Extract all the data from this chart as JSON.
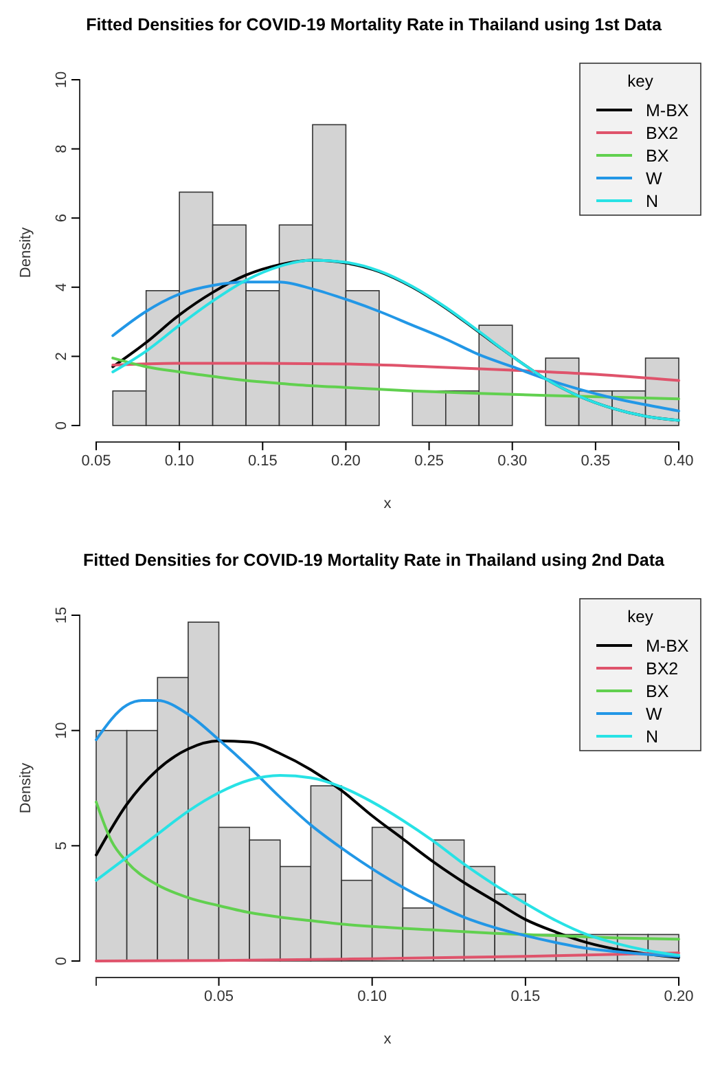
{
  "chart_data": [
    {
      "type": "histogram",
      "title": "Fitted Densities for COVID-19 Mortality Rate  in Thailand using 1st Data",
      "xlabel": "x",
      "ylabel": "Density",
      "legend_title": "key",
      "legend": "top right",
      "grid": false,
      "color": "#d3d3d3",
      "bins": [
        0.06,
        0.08,
        0.1,
        0.12,
        0.14,
        0.16,
        0.18,
        0.2,
        0.22,
        0.24,
        0.26,
        0.28,
        0.3,
        0.32,
        0.34,
        0.36,
        0.38,
        0.4
      ],
      "values": [
        1,
        3.9,
        6.75,
        5.8,
        3.9,
        5.8,
        8.7,
        3.9,
        0,
        1,
        1,
        2.9,
        0,
        1.95,
        1,
        1,
        1.95
      ],
      "xlim": [
        0.05,
        0.4
      ],
      "xticks": [
        {
          "value": 0.05,
          "label": "0.05"
        },
        {
          "value": 0.1,
          "label": "0.10"
        },
        {
          "value": 0.15,
          "label": "0.15"
        },
        {
          "value": 0.2,
          "label": "0.20"
        },
        {
          "value": 0.25,
          "label": "0.25"
        },
        {
          "value": 0.3,
          "label": "0.30"
        },
        {
          "value": 0.35,
          "label": "0.35"
        },
        {
          "value": 0.4,
          "label": "0.40"
        }
      ],
      "ylim": [
        0,
        10
      ],
      "yticks": [
        0,
        2,
        4,
        6,
        8,
        10
      ],
      "series": [
        {
          "type": "line",
          "name": "M-BX",
          "color": "#000000",
          "x": [
            0.06,
            0.08,
            0.1,
            0.12,
            0.14,
            0.16,
            0.18,
            0.2,
            0.22,
            0.24,
            0.26,
            0.28,
            0.3,
            0.32,
            0.34,
            0.36,
            0.38,
            0.4
          ],
          "values": [
            1.7,
            2.4,
            3.2,
            3.85,
            4.35,
            4.65,
            4.78,
            4.7,
            4.45,
            4.0,
            3.4,
            2.7,
            2.0,
            1.35,
            0.85,
            0.5,
            0.27,
            0.15
          ]
        },
        {
          "type": "line",
          "name": "BX2",
          "color": "#df536b",
          "x": [
            0.06,
            0.1,
            0.15,
            0.2,
            0.25,
            0.3,
            0.35,
            0.4
          ],
          "values": [
            1.75,
            1.8,
            1.8,
            1.78,
            1.7,
            1.6,
            1.48,
            1.3
          ]
        },
        {
          "type": "line",
          "name": "BX",
          "color": "#61d04f",
          "x": [
            0.06,
            0.08,
            0.1,
            0.12,
            0.14,
            0.16,
            0.18,
            0.2,
            0.24,
            0.28,
            0.32,
            0.36,
            0.4
          ],
          "values": [
            1.95,
            1.7,
            1.55,
            1.42,
            1.3,
            1.22,
            1.15,
            1.1,
            1.0,
            0.93,
            0.87,
            0.82,
            0.77
          ]
        },
        {
          "type": "line",
          "name": "W",
          "color": "#2297e6",
          "x": [
            0.06,
            0.08,
            0.1,
            0.12,
            0.14,
            0.16,
            0.18,
            0.2,
            0.22,
            0.24,
            0.26,
            0.28,
            0.3,
            0.32,
            0.34,
            0.36,
            0.38,
            0.4
          ],
          "values": [
            2.6,
            3.3,
            3.8,
            4.05,
            4.15,
            4.15,
            3.95,
            3.65,
            3.3,
            2.9,
            2.5,
            2.05,
            1.7,
            1.35,
            1.05,
            0.8,
            0.6,
            0.42
          ]
        },
        {
          "type": "line",
          "name": "N",
          "color": "#28e2e5",
          "x": [
            0.06,
            0.08,
            0.1,
            0.12,
            0.14,
            0.16,
            0.18,
            0.2,
            0.22,
            0.24,
            0.26,
            0.28,
            0.3,
            0.32,
            0.34,
            0.36,
            0.38,
            0.4
          ],
          "values": [
            1.55,
            2.15,
            2.9,
            3.6,
            4.2,
            4.6,
            4.78,
            4.72,
            4.47,
            4.02,
            3.42,
            2.72,
            2.0,
            1.35,
            0.85,
            0.5,
            0.27,
            0.15
          ]
        }
      ]
    },
    {
      "type": "histogram",
      "title": "Fitted Densities for COVID-19 Mortality Rate  in Thailand using 2nd Data",
      "xlabel": "x",
      "ylabel": "Density",
      "legend_title": "key",
      "legend": "top right",
      "grid": false,
      "color": "#d3d3d3",
      "bins": [
        0.01,
        0.02,
        0.03,
        0.04,
        0.05,
        0.06,
        0.07,
        0.08,
        0.09,
        0.1,
        0.11,
        0.12,
        0.13,
        0.14,
        0.15,
        0.16,
        0.17,
        0.18,
        0.19,
        0.2
      ],
      "values": [
        10,
        10,
        12.3,
        14.7,
        5.8,
        5.25,
        4.1,
        7.6,
        3.5,
        5.8,
        2.3,
        5.25,
        4.1,
        2.9,
        1.15,
        1.15,
        1.15,
        1.15,
        1.15
      ],
      "xlim": [
        0.01,
        0.2
      ],
      "xticks": [
        {
          "value": 0.05,
          "label": "0.05"
        },
        {
          "value": 0.1,
          "label": "0.10"
        },
        {
          "value": 0.15,
          "label": "0.15"
        },
        {
          "value": 0.2,
          "label": "0.20"
        }
      ],
      "ylim": [
        0,
        15
      ],
      "yticks": [
        0,
        5,
        10,
        15
      ],
      "series": [
        {
          "type": "line",
          "name": "M-BX",
          "color": "#000000",
          "x": [
            0.01,
            0.02,
            0.03,
            0.04,
            0.05,
            0.06,
            0.07,
            0.08,
            0.09,
            0.1,
            0.11,
            0.12,
            0.13,
            0.14,
            0.15,
            0.16,
            0.17,
            0.18,
            0.19,
            0.2
          ],
          "values": [
            4.6,
            6.8,
            8.3,
            9.2,
            9.55,
            9.5,
            9.0,
            8.3,
            7.4,
            6.3,
            5.3,
            4.3,
            3.4,
            2.6,
            1.8,
            1.25,
            0.8,
            0.5,
            0.3,
            0.15
          ]
        },
        {
          "type": "line",
          "name": "BX2",
          "color": "#df536b",
          "x": [
            0.01,
            0.05,
            0.1,
            0.15,
            0.2
          ],
          "values": [
            0,
            0.02,
            0.1,
            0.2,
            0.35
          ]
        },
        {
          "type": "line",
          "name": "BX",
          "color": "#61d04f",
          "x": [
            0.01,
            0.015,
            0.02,
            0.03,
            0.04,
            0.05,
            0.06,
            0.07,
            0.08,
            0.09,
            0.1,
            0.12,
            0.14,
            0.16,
            0.18,
            0.2
          ],
          "values": [
            6.9,
            5.2,
            4.3,
            3.3,
            2.75,
            2.4,
            2.1,
            1.9,
            1.75,
            1.6,
            1.5,
            1.35,
            1.2,
            1.1,
            1.0,
            0.95
          ]
        },
        {
          "type": "line",
          "name": "W",
          "color": "#2297e6",
          "x": [
            0.01,
            0.02,
            0.025,
            0.03,
            0.04,
            0.05,
            0.06,
            0.07,
            0.08,
            0.09,
            0.1,
            0.11,
            0.12,
            0.13,
            0.14,
            0.15,
            0.16,
            0.17,
            0.18,
            0.19,
            0.2
          ],
          "values": [
            9.6,
            11.1,
            11.3,
            11.3,
            10.7,
            9.6,
            8.4,
            7.1,
            5.9,
            4.9,
            4.0,
            3.2,
            2.5,
            1.9,
            1.45,
            1.1,
            0.8,
            0.55,
            0.4,
            0.28,
            0.2
          ]
        },
        {
          "type": "line",
          "name": "N",
          "color": "#28e2e5",
          "x": [
            0.01,
            0.02,
            0.03,
            0.04,
            0.05,
            0.06,
            0.07,
            0.08,
            0.09,
            0.1,
            0.11,
            0.12,
            0.13,
            0.14,
            0.15,
            0.16,
            0.17,
            0.18,
            0.19,
            0.2
          ],
          "values": [
            3.5,
            4.5,
            5.5,
            6.5,
            7.3,
            7.85,
            8.05,
            7.95,
            7.55,
            6.9,
            6.1,
            5.2,
            4.2,
            3.3,
            2.5,
            1.75,
            1.15,
            0.75,
            0.45,
            0.25
          ]
        }
      ]
    }
  ]
}
